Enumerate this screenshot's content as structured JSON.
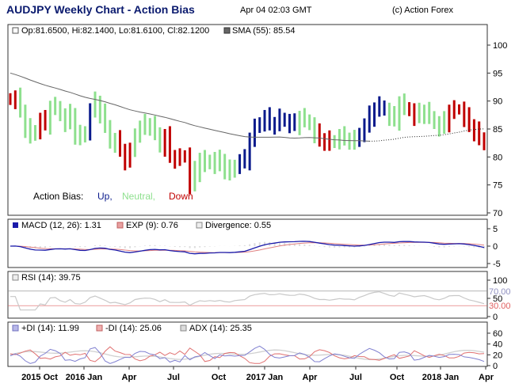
{
  "header": {
    "title": "AUDJPY Weekly Chart - Action Bias",
    "date": "Apr 04 02:03 GMT",
    "copyright": "(c) Action Forex"
  },
  "colors": {
    "up": "#0a1a8c",
    "neutral": "#8ee08e",
    "down": "#c00000",
    "sma": "#666666",
    "macd": "#1a1aaa",
    "macd_exp": "#e08080",
    "rsi": "#c8c8c8",
    "rsi_levels": "#e06060",
    "plus_di": "#8080d0",
    "minus_di": "#e07070",
    "adx": "#d0d0d0"
  },
  "chart_data": [
    {
      "type": "ohlc",
      "panel": "price",
      "legend": {
        "ohlc": "Op:81.6500, Hi:82.1400, Lo:81.6100, Cl:82.1200",
        "sma": "SMA (55): 85.54"
      },
      "y_ticks": [
        70,
        75,
        80,
        85,
        90,
        95,
        100
      ],
      "ylim": [
        70,
        102.5
      ],
      "bias_legend": {
        "label": "Action Bias:",
        "up": "Up,",
        "neutral": "Neutral,",
        "down": "Down"
      },
      "x_labels": [
        "2015 Oct",
        "2016 Jan",
        "Apr",
        "Jul",
        "Oct",
        "2017 Jan",
        "Apr",
        "Jul",
        "Oct",
        "2018 Jan",
        "Apr"
      ],
      "bias": "DDNNNNDDNNNNNNNNUNNNNNDDDNNNNNNDDDDDDNNNNNNNNNUUUUUUUUUUUUNNNNDDDNNNNNUUUUUUNNNNDDNNNNNNDDDDDDDD",
      "close": [
        90.2,
        90.5,
        88.2,
        85.3,
        83.8,
        84.8,
        86.5,
        85.9,
        88.9,
        89.1,
        87.3,
        86.1,
        87.6,
        84.1,
        83.5,
        84.6,
        88.2,
        89.8,
        87.9,
        85.7,
        82.4,
        82.9,
        81.2,
        79.5,
        80.9,
        84.2,
        85.1,
        85.8,
        85.7,
        84.4,
        81.7,
        83.6,
        80.1,
        79.8,
        79.9,
        80.3,
        75.0,
        77.4,
        79.6,
        78.7,
        79.5,
        78.6,
        79.4,
        77.9,
        77.2,
        78.6,
        79.1,
        79.5,
        83.2,
        85.2,
        86.2,
        87.0,
        85.9,
        86.0,
        87.0,
        86.3,
        85.9,
        85.8,
        87.1,
        86.7,
        85.7,
        84.1,
        83.0,
        83.1,
        82.5,
        83.0,
        83.6,
        83.2,
        83.2,
        82.7,
        84.3,
        85.5,
        87.3,
        88.6,
        89.2,
        88.3,
        87.2,
        86.6,
        89.7,
        88.9,
        88.2,
        87.2,
        87.8,
        88.2,
        87.3,
        85.9,
        85.3,
        86.3,
        88.2,
        88.5,
        88.5,
        87.0,
        85.6,
        84.7,
        83.5,
        82.1
      ]
    },
    {
      "type": "line",
      "panel": "macd",
      "legend": {
        "macd": "MACD (12, 26): 1.31",
        "exp": "EXP (9): 0.76",
        "div": "Divergence: 0.55"
      },
      "y_ticks": [
        -5,
        0,
        5
      ],
      "ylim": [
        -6,
        6
      ]
    },
    {
      "type": "line",
      "panel": "rsi",
      "legend": {
        "rsi": "RSI (14): 39.75"
      },
      "y_ticks": [
        0,
        50,
        100
      ],
      "levels": [
        "70.00",
        "30.00"
      ],
      "ylim": [
        0,
        105
      ]
    },
    {
      "type": "line",
      "panel": "dmi",
      "legend": {
        "plus_di": "+DI (14): 11.99",
        "minus_di": "-DI (14): 25.06",
        "adx": "ADX (14): 25.35"
      },
      "y_ticks": [
        0,
        20,
        40,
        60
      ],
      "ylim": [
        0,
        70
      ]
    }
  ]
}
